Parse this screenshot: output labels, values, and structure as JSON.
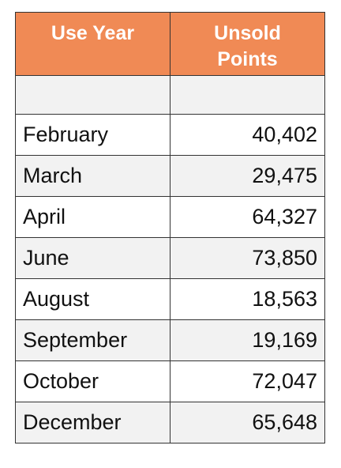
{
  "table": {
    "headers": {
      "use_year": "Use Year",
      "unsold_points": "Unsold Points"
    },
    "rows": [
      {
        "month": "February",
        "points": "40,402"
      },
      {
        "month": "March",
        "points": "29,475"
      },
      {
        "month": "April",
        "points": "64,327"
      },
      {
        "month": "June",
        "points": "73,850"
      },
      {
        "month": "August",
        "points": "18,563"
      },
      {
        "month": "September",
        "points": "19,169"
      },
      {
        "month": "October",
        "points": "72,047"
      },
      {
        "month": "December",
        "points": "65,648"
      }
    ]
  },
  "colors": {
    "header_bg": "#f08a55",
    "header_text": "#ffffff",
    "alt_row_bg": "#f2f2f2",
    "border": "#333333"
  }
}
